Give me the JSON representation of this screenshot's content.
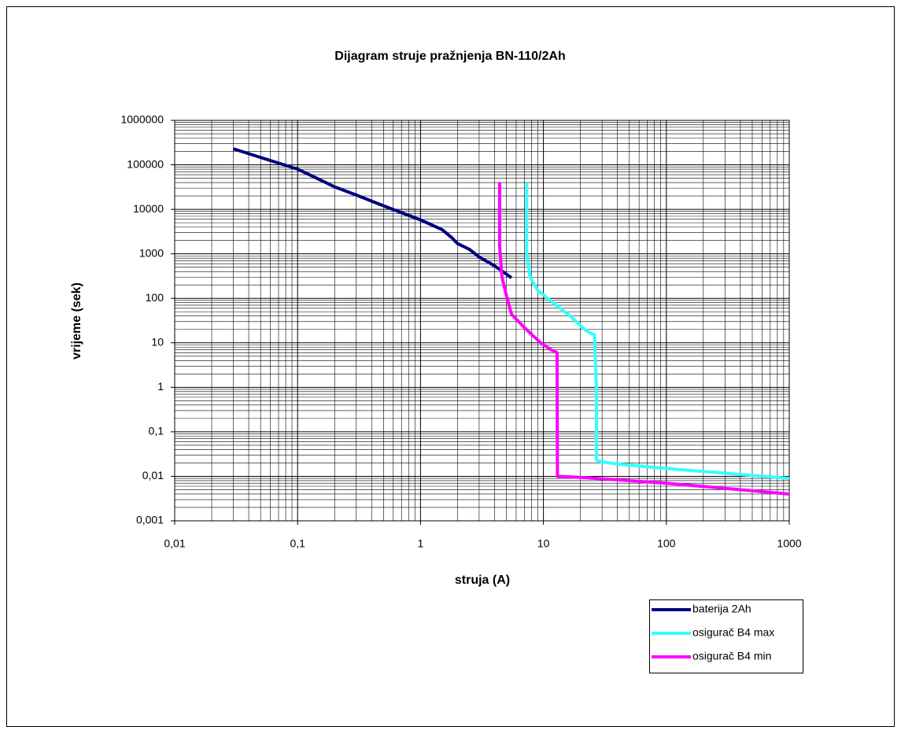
{
  "chart_data": {
    "type": "line",
    "title": "Dijagram struje pražnjenja BN-110/2Ah",
    "x_label": "struja (A)",
    "y_label": "vrijeme (sek)",
    "xscale": "log",
    "yscale": "log",
    "grid": true,
    "minor_grid": true,
    "legend": "bottom-right",
    "xlim": [
      0.01,
      1000
    ],
    "xticks": [
      {
        "value": 0.01,
        "label": "0,01"
      },
      {
        "value": 0.1,
        "label": "0,1"
      },
      1,
      10,
      100,
      1000
    ],
    "ylim": [
      0.001,
      1000000
    ],
    "yticks": [
      {
        "value": 0.001,
        "label": "0,001"
      },
      {
        "value": 0.01,
        "label": "0,01"
      },
      {
        "value": 0.1,
        "label": "0,1"
      },
      1,
      10,
      100,
      1000,
      10000,
      100000,
      1000000
    ],
    "series": [
      {
        "name": "baterija 2Ah",
        "color": "#000080",
        "x": [
          0.03,
          0.1,
          0.15,
          0.2,
          0.3,
          0.5,
          1,
          1.5,
          1.8,
          2,
          2.5,
          3,
          4,
          5.5
        ],
        "values": [
          230000,
          80000,
          47000,
          32000,
          21000,
          12000,
          5800,
          3500,
          2300,
          1700,
          1260,
          850,
          540,
          290
        ]
      },
      {
        "name": "osigurač B4 max",
        "color": "#33ffff",
        "x": [
          7.3,
          7.3,
          7.8,
          9,
          12,
          17,
          22,
          26,
          27,
          27,
          30,
          40,
          100,
          1000
        ],
        "values": [
          40000,
          1000,
          300,
          150,
          80,
          37,
          19,
          15,
          1,
          0.023,
          0.021,
          0.019,
          0.015,
          0.009
        ]
      },
      {
        "name": "osigurač B4 min",
        "color": "#ff00ff",
        "x": [
          4.4,
          4.4,
          4.6,
          5,
          5.5,
          7,
          9.5,
          11.5,
          12.9,
          13,
          20,
          100,
          1000
        ],
        "values": [
          40000,
          1500,
          300,
          115,
          44,
          22,
          10,
          7,
          6,
          0.01,
          0.0095,
          0.007,
          0.004
        ]
      }
    ]
  }
}
